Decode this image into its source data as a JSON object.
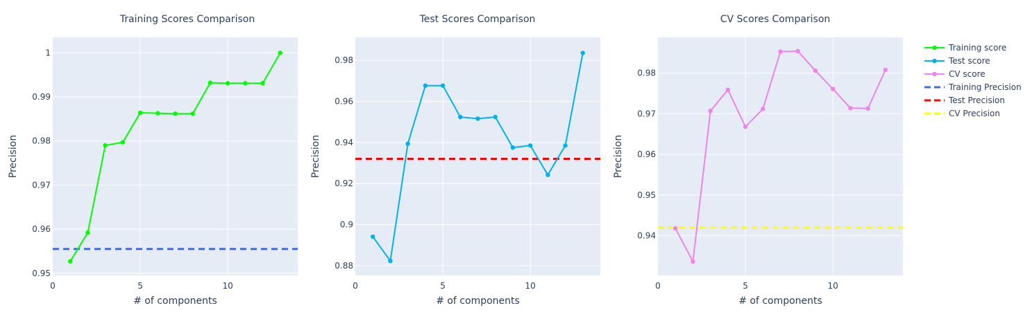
{
  "chart_data": [
    {
      "type": "line",
      "title": "Training Scores Comparison",
      "xlabel": "# of components",
      "ylabel": "Precision",
      "xlim": [
        0,
        14
      ],
      "ylim": [
        0.9495,
        1.0035
      ],
      "xticks": [
        0,
        5,
        10
      ],
      "yticks": [
        0.95,
        0.96,
        0.97,
        0.98,
        0.99,
        1
      ],
      "ytick_labels": [
        "0.95",
        "0.96",
        "0.97",
        "0.98",
        "0.99",
        "1"
      ],
      "series": [
        {
          "name": "Training score",
          "color": "#00ff00",
          "x": [
            1,
            2,
            3,
            4,
            5,
            6,
            7,
            8,
            9,
            10,
            11,
            12,
            13
          ],
          "y": [
            0.9527,
            0.9592,
            0.979,
            0.9797,
            0.9864,
            0.9863,
            0.9862,
            0.9862,
            0.9932,
            0.9931,
            0.9931,
            0.9931,
            1.0
          ]
        }
      ],
      "hline": {
        "name": "Training Precision",
        "y": 0.9555,
        "color": "#4169e1",
        "dash": true
      }
    },
    {
      "type": "line",
      "title": "Test Scores Comparison",
      "xlabel": "# of components",
      "ylabel": "Precision",
      "xlim": [
        0,
        14
      ],
      "ylim": [
        0.8752,
        0.9912
      ],
      "xticks": [
        0,
        5,
        10
      ],
      "yticks": [
        0.88,
        0.9,
        0.92,
        0.94,
        0.96,
        0.98
      ],
      "ytick_labels": [
        "0.88",
        "0.9",
        "0.92",
        "0.94",
        "0.96",
        "0.98"
      ],
      "series": [
        {
          "name": "Test score",
          "color": "#00b0f0",
          "x": [
            1,
            2,
            3,
            4,
            5,
            6,
            7,
            8,
            9,
            10,
            11,
            12,
            13
          ],
          "y": [
            0.8941,
            0.8823,
            0.9394,
            0.9677,
            0.9677,
            0.9524,
            0.9516,
            0.9524,
            0.9375,
            0.9385,
            0.9242,
            0.9385,
            0.9836
          ]
        }
      ],
      "hline": {
        "name": "Test Precision",
        "y": 0.932,
        "color": "#ff0000",
        "dash": true
      }
    },
    {
      "type": "line",
      "title": "CV Scores Comparison",
      "xlabel": "# of components",
      "ylabel": "Precision",
      "xlim": [
        0,
        14
      ],
      "ylim": [
        0.9302,
        0.9888
      ],
      "xticks": [
        0,
        5,
        10
      ],
      "yticks": [
        0.94,
        0.95,
        0.96,
        0.97,
        0.98
      ],
      "ytick_labels": [
        "0.94",
        "0.95",
        "0.96",
        "0.97",
        "0.98"
      ],
      "series": [
        {
          "name": "CV score",
          "color": "#ee82ee",
          "x": [
            1,
            2,
            3,
            4,
            5,
            6,
            7,
            8,
            9,
            10,
            11,
            12,
            13
          ],
          "y": [
            0.9418,
            0.9336,
            0.9707,
            0.9759,
            0.9668,
            0.9712,
            0.9853,
            0.9854,
            0.9806,
            0.9761,
            0.9714,
            0.9713,
            0.9808
          ]
        }
      ],
      "hline": {
        "name": "CV Precision",
        "y": 0.942,
        "color": "#ffff00",
        "dash": true
      }
    }
  ],
  "legend": {
    "position": "top-right",
    "items": [
      {
        "label": "Training score",
        "color": "#00ff00",
        "kind": "line-marker"
      },
      {
        "label": "Test score",
        "color": "#00b0f0",
        "kind": "line-marker"
      },
      {
        "label": "CV score",
        "color": "#ee82ee",
        "kind": "line-marker"
      },
      {
        "label": "Training Precision",
        "color": "#4169e1",
        "kind": "dash"
      },
      {
        "label": "Test Precision",
        "color": "#ff0000",
        "kind": "dash"
      },
      {
        "label": "CV Precision",
        "color": "#ffff00",
        "kind": "dash"
      }
    ]
  },
  "colors": {
    "plot_bg": "#e5ecf6",
    "grid": "#ffffff",
    "text": "#2a3f5f"
  }
}
